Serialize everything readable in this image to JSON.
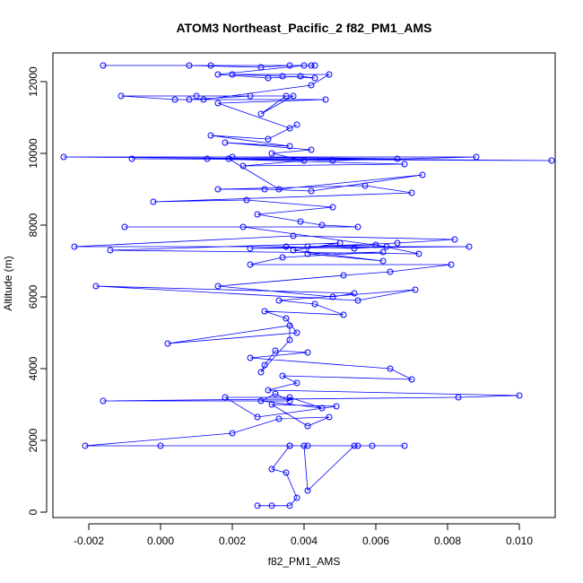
{
  "chart_data": {
    "type": "line",
    "title": "ATOM3 Northeast_Pacific_2 f82_PM1_AMS",
    "xlabel": "f82_PM1_AMS",
    "ylabel": "Altitude (m)",
    "xlim": [
      -0.003,
      0.011
    ],
    "ylim": [
      -150,
      12800
    ],
    "xticks": [
      -0.002,
      0.0,
      0.002,
      0.004,
      0.006,
      0.008,
      0.01
    ],
    "xtick_labels": [
      "-0.002",
      "0.000",
      "0.002",
      "0.004",
      "0.006",
      "0.008",
      "0.010"
    ],
    "yticks": [
      0,
      2000,
      4000,
      6000,
      8000,
      10000,
      12000
    ],
    "ytick_labels": [
      "0",
      "2000",
      "4000",
      "6000",
      "8000",
      "10000",
      "12000"
    ],
    "grid": false,
    "legend": "none",
    "series": [
      {
        "color": "#0000ff",
        "marker": "open-circle",
        "x": [
          0.0027,
          0.0031,
          0.0036,
          0.0038,
          0.0035,
          0.0031,
          0.0036,
          0.0054,
          0.0041,
          0.004,
          0.0036,
          0.0055,
          0.0068,
          0.0059,
          0.0041,
          0.0,
          -0.0021,
          0.002,
          0.0033,
          0.0047,
          0.0041,
          0.0031,
          0.0049,
          0.0027,
          0.0018,
          0.0036,
          0.0045,
          0.0028,
          0.0032,
          0.0036,
          -0.0016,
          0.0083,
          0.01,
          0.003,
          0.0038,
          0.0034,
          0.007,
          0.0064,
          0.0025,
          0.0041,
          0.0032,
          0.0029,
          0.0028,
          0.0036,
          0.0036,
          0.0002,
          0.0038,
          0.0035,
          0.0029,
          0.0051,
          0.0043,
          0.0033,
          0.0071,
          0.0055,
          -0.0018,
          0.0054,
          0.0048,
          0.0016,
          0.0051,
          0.0064,
          0.0081,
          0.0025,
          0.0034,
          0.0062,
          0.0041,
          0.0062,
          0.0037,
          0.005,
          -0.0014,
          0.0072,
          0.006,
          0.0025,
          0.0086,
          0.0041,
          0.0066,
          0.0082,
          0.0037,
          -0.0024,
          0.0035,
          0.0054,
          0.0063,
          0.0023,
          -0.001,
          0.0055,
          0.0045,
          0.0039,
          0.0027,
          0.0048,
          0.0024,
          -0.0002,
          0.007,
          0.0057,
          0.0016,
          0.0029,
          0.0042,
          0.0073,
          0.0033,
          0.0019,
          0.002,
          0.0066,
          -0.0008,
          0.0109,
          -0.0027,
          0.0088,
          0.0048,
          0.0013,
          0.0068,
          0.0023,
          0.004,
          0.0031,
          0.0042,
          0.0018,
          0.0036,
          0.0014,
          0.003,
          0.0038,
          0.0036,
          0.0016,
          0.0046,
          0.0008,
          0.0025,
          0.0035,
          0.0028,
          0.0037,
          0.001,
          -0.0011,
          0.0004,
          0.0012,
          0.0042,
          0.0047,
          0.002,
          0.0034,
          0.0043,
          0.0039,
          0.003,
          0.0016,
          0.004,
          0.0042,
          0.0008,
          0.0028,
          0.0036,
          0.0014,
          -0.0016,
          0.0043
        ],
        "y": [
          180,
          180,
          180,
          400,
          1100,
          1200,
          1850,
          1850,
          600,
          1850,
          1850,
          1850,
          1850,
          1850,
          1850,
          1850,
          1850,
          2200,
          2600,
          2650,
          2400,
          3000,
          2950,
          2650,
          3200,
          3200,
          2900,
          3100,
          3300,
          3100,
          3100,
          3200,
          3250,
          3400,
          3600,
          3800,
          3700,
          4000,
          4300,
          4450,
          4500,
          4100,
          3900,
          4800,
          5200,
          4700,
          5000,
          5400,
          5600,
          5500,
          5800,
          5900,
          6200,
          5900,
          6300,
          6100,
          6000,
          6300,
          6600,
          6700,
          6900,
          6900,
          7100,
          7250,
          7200,
          7000,
          7300,
          7500,
          7300,
          7200,
          7450,
          7350,
          7400,
          7400,
          7500,
          7600,
          7700,
          7400,
          7400,
          7350,
          7400,
          7950,
          7950,
          7950,
          8000,
          8100,
          8300,
          8500,
          8700,
          8650,
          8900,
          9100,
          9000,
          9000,
          8950,
          9400,
          9000,
          9850,
          9900,
          9850,
          9850,
          9800,
          9900,
          9900,
          9800,
          9850,
          9700,
          9650,
          9800,
          10000,
          10100,
          10300,
          10200,
          10500,
          10400,
          10800,
          10700,
          11400,
          11500,
          11500,
          11600,
          11600,
          11100,
          11600,
          11600,
          11600,
          11500,
          11500,
          11900,
          12200,
          12200,
          12150,
          12100,
          12150,
          12100,
          12200,
          12450,
          12450,
          12450,
          12400,
          12450,
          12450,
          12450,
          12450
        ]
      }
    ]
  }
}
